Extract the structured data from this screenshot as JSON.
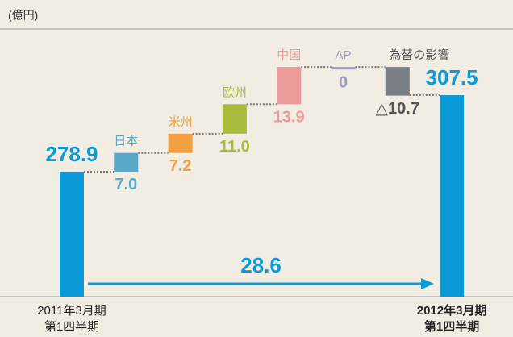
{
  "chart_data": {
    "type": "waterfall",
    "unit": "(億円)",
    "categories": [
      [
        "2011年3月期",
        "第1四半期"
      ],
      "日本",
      "米州",
      "欧州",
      "中国",
      "AP",
      "為替の影響",
      [
        "2012年3月期",
        "第1四半期"
      ]
    ],
    "values": [
      278.9,
      7.0,
      7.2,
      11.0,
      13.9,
      0,
      -10.7,
      307.5
    ],
    "value_labels": [
      "278.9",
      "7.0",
      "7.2",
      "11.0",
      "13.9",
      "0",
      "△10.7",
      "307.5"
    ],
    "colors": [
      "#0a9ad8",
      "#5aa8c8",
      "#f0a040",
      "#a8bb3c",
      "#ec9a9a",
      "#9a9ac8",
      "#7a7f86",
      "#0a9ad8"
    ],
    "delta": {
      "value": 28.6,
      "label": "28.6"
    },
    "ylim": [
      232.2,
      331
    ]
  }
}
